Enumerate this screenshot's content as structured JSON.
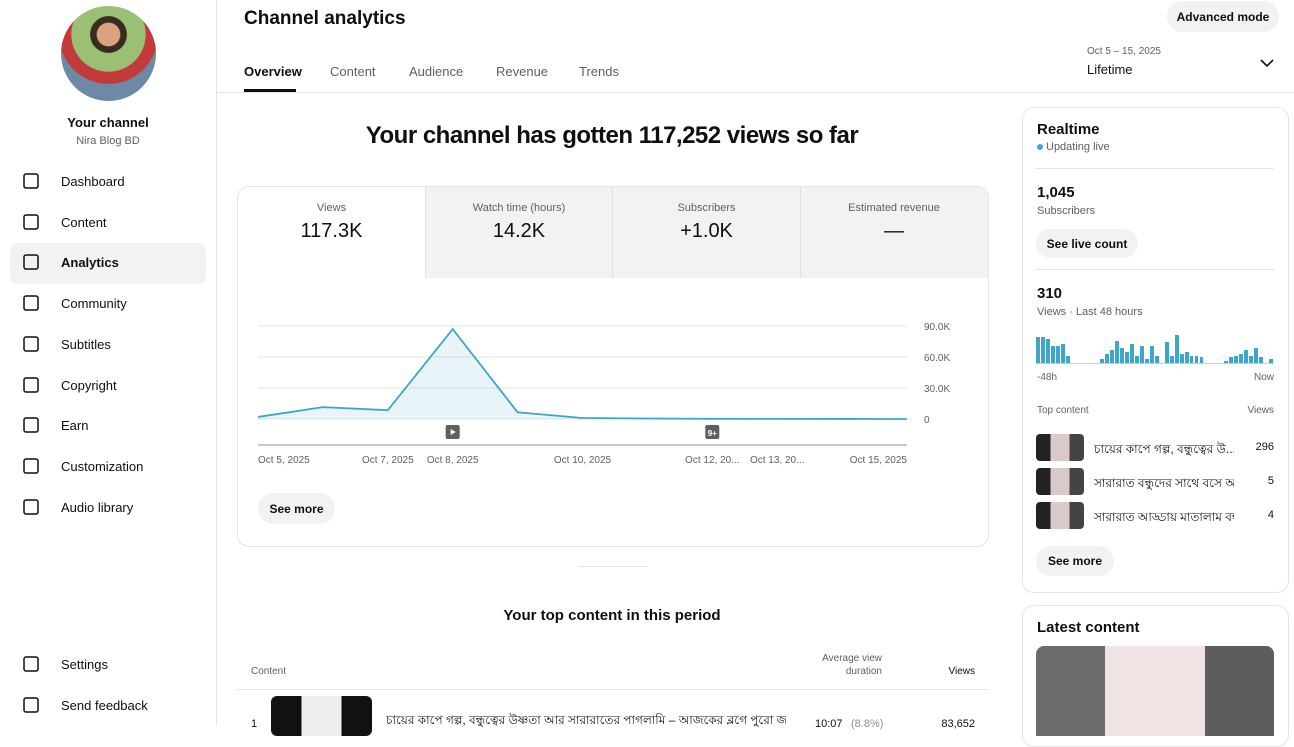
{
  "sidebar": {
    "channel_title": "Your channel",
    "channel_handle": "Nira Blog BD",
    "nav": [
      "Dashboard",
      "Content",
      "Analytics",
      "Community",
      "Subtitles",
      "Copyright",
      "Earn",
      "Customization",
      "Audio library"
    ],
    "footer_nav": [
      "Settings",
      "Send feedback"
    ]
  },
  "header": {
    "title": "Channel analytics",
    "advanced_mode": "Advanced mode",
    "tabs": [
      "Overview",
      "Content",
      "Audience",
      "Revenue",
      "Trends"
    ],
    "date_range": "Oct 5 – 15, 2025",
    "period": "Lifetime"
  },
  "overview": {
    "headline": "Your channel has gotten 117,252 views so far",
    "metrics": [
      {
        "label": "Views",
        "value": "117.3K"
      },
      {
        "label": "Watch time (hours)",
        "value": "14.2K"
      },
      {
        "label": "Subscribers",
        "value": "+1.0K"
      },
      {
        "label": "Estimated revenue",
        "value": "—"
      }
    ],
    "annotation": "9+",
    "see_more": "See more"
  },
  "chart_data": {
    "type": "line",
    "categories": [
      "Oct 5, 2025",
      null,
      "Oct 7, 2025",
      "Oct 8, 2025",
      null,
      "Oct 10, 2025",
      null,
      "Oct 12, 20...",
      "Oct 13, 20...",
      null,
      "Oct 15, 2025"
    ],
    "values": [
      2000,
      11500,
      8500,
      87000,
      6500,
      1000,
      500,
      200,
      100,
      50,
      0
    ],
    "color": "#3ea6c8",
    "ylim": [
      0,
      90000
    ],
    "yticks": [
      {
        "value": 0,
        "label": "0"
      },
      {
        "value": 30000,
        "label": "30.0K"
      },
      {
        "value": 60000,
        "label": "60.0K"
      },
      {
        "value": 90000,
        "label": "90.0K"
      }
    ],
    "grid": true
  },
  "realtime": {
    "title": "Realtime",
    "status": "Updating live",
    "subscribers": "1,045",
    "subscribers_label": "Subscribers",
    "see_live_count": "See live count",
    "views": "310",
    "views_label": "Views · Last 48 hours",
    "bars": [
      14,
      14,
      13,
      9,
      9,
      10,
      4,
      0,
      0,
      0,
      0,
      0,
      0,
      2,
      5,
      7,
      12,
      8,
      6,
      10,
      4,
      9,
      2,
      9,
      4,
      0,
      11,
      4,
      15,
      5,
      6,
      4,
      4,
      3,
      0,
      0,
      0,
      0,
      1,
      3,
      4,
      5,
      7,
      4,
      8,
      3,
      0,
      2
    ],
    "axis_start": "-48h",
    "axis_end": "Now",
    "top_content_label": "Top content",
    "views_column": "Views",
    "items": [
      {
        "title": "চায়ের কাপে গল্প, বন্ধুত্বের উ...",
        "views": "296"
      },
      {
        "title": "সারারাত বন্ধুদের সাথে বসে আ...",
        "views": "5"
      },
      {
        "title": "সারারাত আড্ডায় মাতালাম বন্ধু...",
        "views": "4"
      }
    ],
    "see_more": "See more"
  },
  "latest_content": {
    "title": "Latest content"
  },
  "top_content": {
    "title": "Your top content in this period",
    "columns": [
      "Content",
      "Average view duration",
      "Views"
    ],
    "rows": [
      {
        "rank": "1",
        "title": "চায়ের কাপে গল্প, বন্ধুত্বের উষ্ণতা আর সারারাতের পাগলামি – আজকের ব্লগে পুরো জ...",
        "duration": "10:07",
        "percent": "(8.8%)",
        "views": "83,652"
      }
    ]
  }
}
